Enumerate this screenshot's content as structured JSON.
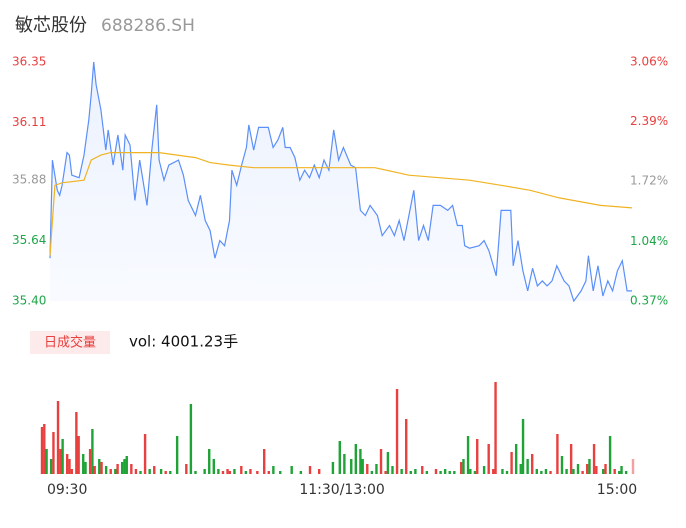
{
  "chart_data": [
    {
      "type": "line",
      "title": "敏芯股份",
      "subtitle": "688286.SH",
      "xlim": [
        0,
        240
      ],
      "ylim": [
        35.4,
        36.35
      ],
      "yticks": [
        {
          "value": 35.4,
          "label": "35.40"
        },
        35.64,
        35.88,
        36.11,
        36.35
      ],
      "ytick_colors": [
        "#1ea64a",
        "#1ea64a",
        "#999999",
        "#e8403f",
        "#e8403f"
      ],
      "y2lim": [
        0.37,
        3.06
      ],
      "y2ticks": [
        {
          "value": 0.37,
          "label": "0.37%"
        },
        {
          "value": 1.04,
          "label": "1.04%"
        },
        {
          "value": 1.72,
          "label": "1.72%"
        },
        {
          "value": 2.39,
          "label": "2.39%"
        },
        {
          "value": 3.06,
          "label": "3.06%"
        }
      ],
      "series": [
        {
          "color": "#5b8ff9",
          "x": [
            0,
            1,
            3,
            4,
            5,
            7,
            8,
            9,
            12,
            14,
            16,
            17,
            18,
            19,
            21,
            23,
            24,
            26,
            28,
            30,
            31,
            33,
            35,
            37,
            40,
            42,
            44,
            45,
            47,
            49,
            53,
            55,
            57,
            60,
            62,
            64,
            66,
            68,
            70,
            72,
            74,
            75,
            77,
            79,
            81,
            82,
            84,
            86,
            88,
            90,
            92,
            94,
            96,
            97,
            99,
            101,
            103,
            105,
            107,
            109,
            111,
            113,
            115,
            117,
            119,
            121,
            124,
            126,
            128,
            130,
            132,
            135,
            137,
            140,
            142,
            144,
            146,
            148,
            150,
            152,
            154,
            156,
            158,
            161,
            164,
            166,
            168,
            170,
            171,
            173,
            177,
            179,
            181,
            184,
            186,
            190,
            191,
            193,
            195,
            197,
            199,
            201,
            203,
            205,
            207,
            209,
            212,
            214,
            216,
            219,
            221,
            222,
            224,
            226,
            228,
            230,
            232,
            234,
            236,
            238,
            240
          ],
          "values": [
            35.57,
            35.96,
            35.84,
            35.82,
            35.86,
            35.99,
            35.98,
            35.9,
            35.89,
            35.98,
            36.12,
            36.22,
            36.35,
            36.26,
            36.16,
            36.0,
            36.08,
            35.94,
            36.06,
            35.92,
            36.06,
            36.02,
            35.8,
            35.96,
            35.78,
            36.0,
            36.18,
            35.96,
            35.88,
            35.94,
            35.96,
            35.9,
            35.8,
            35.74,
            35.82,
            35.72,
            35.68,
            35.57,
            35.64,
            35.62,
            35.72,
            35.92,
            35.86,
            35.94,
            36.01,
            36.1,
            36.0,
            36.09,
            36.09,
            36.09,
            36.01,
            36.04,
            36.09,
            36.01,
            36.01,
            35.97,
            35.88,
            35.92,
            35.89,
            35.94,
            35.89,
            35.96,
            35.92,
            36.08,
            35.96,
            36.01,
            35.94,
            35.93,
            35.76,
            35.74,
            35.78,
            35.74,
            35.66,
            35.7,
            35.66,
            35.72,
            35.64,
            35.74,
            35.84,
            35.64,
            35.7,
            35.64,
            35.78,
            35.78,
            35.76,
            35.78,
            35.7,
            35.7,
            35.62,
            35.61,
            35.62,
            35.64,
            35.6,
            35.5,
            35.76,
            35.76,
            35.54,
            35.64,
            35.52,
            35.44,
            35.53,
            35.46,
            35.48,
            35.46,
            35.48,
            35.54,
            35.48,
            35.46,
            35.4,
            35.44,
            35.48,
            35.58,
            35.44,
            35.54,
            35.42,
            35.48,
            35.44,
            35.52,
            35.56,
            35.44,
            35.44
          ]
        },
        {
          "color": "#f0b323",
          "x": [
            0,
            2,
            5,
            14,
            17,
            21,
            25,
            45,
            60,
            66,
            74,
            84,
            103,
            134,
            148,
            173,
            186,
            198,
            210,
            227,
            240
          ],
          "values": [
            35.58,
            35.86,
            35.87,
            35.88,
            35.96,
            35.98,
            35.99,
            35.99,
            35.97,
            35.95,
            35.94,
            35.93,
            35.93,
            35.93,
            35.9,
            35.88,
            35.86,
            35.84,
            35.81,
            35.78,
            35.77
          ]
        }
      ]
    },
    {
      "type": "bar",
      "legend_label": "日成交量",
      "annotation": "vol: 4001.23手",
      "xlim": [
        -11,
        247
      ],
      "xticks": [
        {
          "value": 0,
          "label": "09:30"
        },
        {
          "value": 120,
          "label": "11:30/13:00"
        },
        {
          "value": 240,
          "label": "15:00"
        }
      ],
      "x": [
        -11,
        -10,
        -9,
        -7,
        -6,
        -4,
        -3,
        -2,
        0,
        1,
        2,
        4,
        5,
        7,
        8,
        10,
        11,
        12,
        14,
        15,
        17,
        19,
        21,
        22,
        24,
        25,
        26,
        28,
        30,
        32,
        34,
        36,
        38,
        41,
        43,
        45,
        48,
        52,
        54,
        56,
        60,
        62,
        64,
        66,
        68,
        70,
        71,
        73,
        76,
        78,
        80,
        83,
        86,
        88,
        90,
        93,
        98,
        102,
        106,
        110,
        116,
        119,
        121,
        124,
        126,
        128,
        129,
        131,
        133,
        135,
        137,
        139,
        140,
        142,
        144,
        146,
        148,
        150,
        152,
        155,
        157,
        161,
        163,
        165,
        167,
        169,
        172,
        173,
        175,
        176,
        178,
        179,
        182,
        184,
        186,
        187,
        190,
        192,
        194,
        196,
        198,
        199,
        201,
        203,
        205,
        207,
        209,
        211,
        214,
        216,
        218,
        220,
        221,
        223,
        225,
        227,
        228,
        230,
        231,
        234,
        235,
        237,
        239,
        241,
        242,
        244,
        247
      ],
      "values": [
        47,
        50,
        25,
        15,
        42,
        73,
        25,
        35,
        20,
        15,
        5,
        62,
        38,
        20,
        12,
        25,
        45,
        8,
        15,
        12,
        8,
        5,
        5,
        10,
        12,
        15,
        18,
        10,
        5,
        3,
        40,
        5,
        8,
        5,
        3,
        3,
        38,
        10,
        70,
        3,
        5,
        25,
        15,
        5,
        3,
        5,
        3,
        5,
        8,
        3,
        5,
        3,
        25,
        3,
        8,
        3,
        8,
        3,
        8,
        5,
        12,
        33,
        20,
        15,
        30,
        25,
        15,
        10,
        3,
        10,
        25,
        3,
        22,
        8,
        85,
        5,
        55,
        3,
        5,
        8,
        3,
        5,
        3,
        5,
        3,
        3,
        12,
        15,
        38,
        5,
        3,
        35,
        8,
        30,
        5,
        92,
        5,
        3,
        22,
        30,
        10,
        55,
        15,
        20,
        5,
        3,
        5,
        3,
        40,
        18,
        5,
        30,
        5,
        10,
        3,
        10,
        15,
        30,
        8,
        5,
        10,
        38,
        5,
        3,
        8,
        3,
        15
      ],
      "colors": [
        "#e8403f",
        "#e8403f",
        "#1fa336",
        "#1fa336",
        "#e8403f",
        "#e8403f",
        "#e8403f",
        "#1fa336",
        "#e8403f",
        "#e8403f",
        "#e8403f",
        "#e8403f",
        "#e8403f",
        "#1fa336",
        "#1fa336",
        "#e8403f",
        "#1fa336",
        "#e8403f",
        "#1fa336",
        "#e8403f",
        "#1fa336",
        "#e8403f",
        "#1fa336",
        "#e8403f",
        "#1fa336",
        "#1fa336",
        "#1fa336",
        "#e8403f",
        "#e8403f",
        "#1fa336",
        "#e8403f",
        "#1fa336",
        "#e8403f",
        "#1fa336",
        "#e8403f",
        "#1fa336",
        "#1fa336",
        "#e8403f",
        "#1fa336",
        "#1fa336",
        "#1fa336",
        "#1fa336",
        "#1fa336",
        "#1fa336",
        "#e8403f",
        "#e8403f",
        "#e8403f",
        "#1fa336",
        "#e8403f",
        "#1fa336",
        "#e8403f",
        "#e8403f",
        "#e8403f",
        "#e8403f",
        "#1fa336",
        "#1fa336",
        "#1fa336",
        "#1fa336",
        "#e8403f",
        "#e8403f",
        "#1fa336",
        "#1fa336",
        "#1fa336",
        "#1fa336",
        "#1fa336",
        "#1fa336",
        "#1fa336",
        "#e8403f",
        "#1fa336",
        "#1fa336",
        "#e8403f",
        "#e8403f",
        "#1fa336",
        "#1fa336",
        "#e8403f",
        "#1fa336",
        "#e8403f",
        "#1fa336",
        "#1fa336",
        "#e8403f",
        "#1fa336",
        "#e8403f",
        "#1fa336",
        "#1fa336",
        "#1fa336",
        "#1fa336",
        "#e8403f",
        "#1fa336",
        "#1fa336",
        "#1fa336",
        "#1fa336",
        "#e8403f",
        "#1fa336",
        "#e8403f",
        "#e8403f",
        "#e8403f",
        "#1fa336",
        "#1fa336",
        "#e8403f",
        "#1fa336",
        "#1fa336",
        "#1fa336",
        "#1fa336",
        "#e8403f",
        "#1fa336",
        "#1fa336",
        "#1fa336",
        "#e8403f",
        "#e8403f",
        "#1fa336",
        "#1fa336",
        "#e8403f",
        "#1fa336",
        "#1fa336",
        "#e8403f",
        "#e8403f",
        "#1fa336",
        "#e8403f",
        "#e8403f",
        "#1fa336",
        "#e8403f",
        "#1fa336",
        "#e8403f",
        "#1fa336",
        "#1fa336",
        "#1fa336",
        "#f4a0a0"
      ]
    }
  ]
}
